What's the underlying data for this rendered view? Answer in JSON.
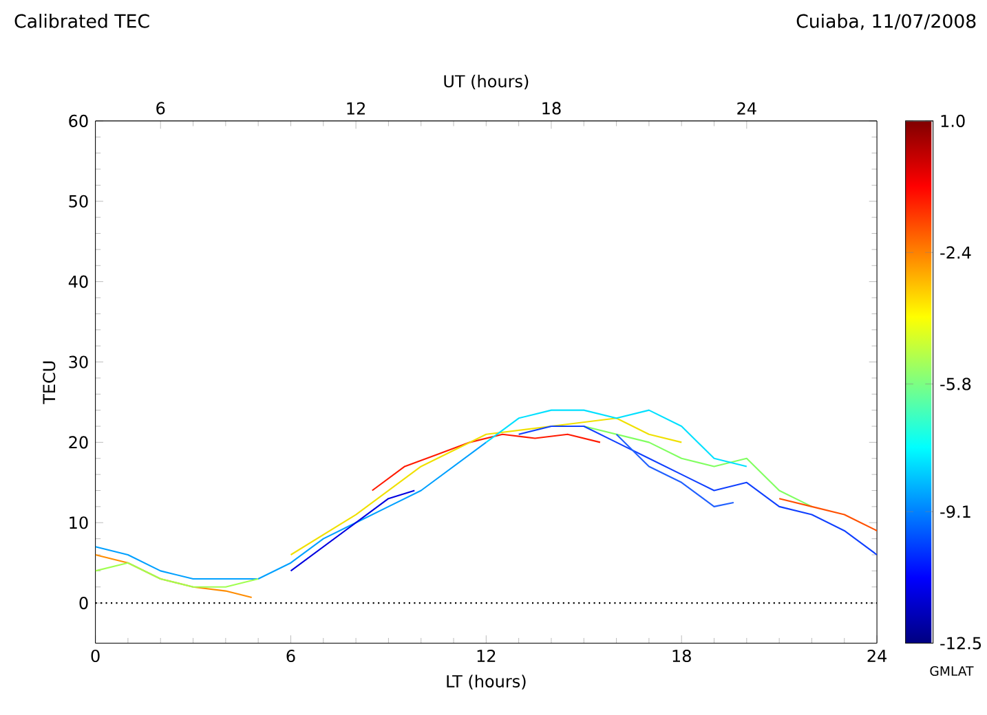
{
  "chart_data": {
    "type": "line",
    "title": "Calibrated TEC",
    "subtitle": "Cuiaba, 11/07/2008",
    "xlabel": "LT (hours)",
    "x2label": "UT (hours)",
    "ylabel": "TECU",
    "clabel": "GMLAT",
    "xlim": [
      0,
      24
    ],
    "xticks": [
      0,
      6,
      12,
      18,
      24
    ],
    "x2lim": [
      4,
      28
    ],
    "x2ticks": [
      6,
      12,
      18,
      24
    ],
    "ylim": [
      -5,
      60
    ],
    "yticks": [
      0,
      10,
      20,
      30,
      40,
      50,
      60
    ],
    "clim": [
      -12.5,
      1.0
    ],
    "cticks": [
      {
        "value": 1.0,
        "label": "1.0"
      },
      {
        "value": -2.4,
        "label": "-2.4"
      },
      {
        "value": -5.8,
        "label": "-5.8"
      },
      {
        "value": -9.1,
        "label": "-9.1"
      },
      {
        "value": -12.5,
        "label": "-12.5"
      }
    ],
    "ref_lines": [
      {
        "axis": "y",
        "value": 0,
        "line_style": "dotted",
        "color": "#000000"
      }
    ],
    "series": [
      {
        "color": "#ff1a00",
        "x": [
          8.5,
          9.5,
          10.5,
          11.5,
          12.5,
          13.5,
          14.5,
          15.5
        ],
        "values": [
          14,
          17,
          18.5,
          20,
          21,
          20.5,
          21,
          20
        ]
      },
      {
        "color": "#ff8c00",
        "x": [
          0,
          1,
          2,
          3,
          4,
          4.8
        ],
        "values": [
          6,
          5,
          3,
          2,
          1.5,
          0.7
        ]
      },
      {
        "color": "#f0e000",
        "x": [
          6,
          8,
          10,
          12,
          14,
          16,
          17,
          18
        ],
        "values": [
          6,
          11,
          17,
          21,
          22,
          23,
          21,
          20
        ]
      },
      {
        "color": "#80ff60",
        "x": [
          15,
          16,
          17,
          18,
          19,
          20,
          21,
          22
        ],
        "values": [
          22,
          21,
          20,
          18,
          17,
          18,
          14,
          12
        ]
      },
      {
        "color": "#00e0ff",
        "x": [
          12,
          13,
          14,
          15,
          16,
          17,
          18,
          19,
          20
        ],
        "values": [
          20,
          23,
          24,
          24,
          23,
          24,
          22,
          18,
          17
        ]
      },
      {
        "color": "#00a0ff",
        "x": [
          0,
          1,
          2,
          3,
          4,
          5,
          6,
          7,
          8,
          9,
          10,
          11,
          12
        ],
        "values": [
          7,
          6,
          4,
          3,
          3,
          3,
          5,
          8,
          10,
          12,
          14,
          17,
          20
        ]
      },
      {
        "color": "#1040ff",
        "x": [
          13,
          14,
          15,
          16,
          17,
          18,
          19,
          20,
          21,
          22,
          23,
          24
        ],
        "values": [
          21,
          22,
          22,
          20,
          18,
          16,
          14,
          15,
          12,
          11,
          9,
          6
        ]
      },
      {
        "color": "#0000e0",
        "x": [
          6,
          7,
          8,
          9,
          9.8
        ],
        "values": [
          4,
          7,
          10,
          13,
          14
        ]
      },
      {
        "color": "#2060ff",
        "x": [
          16,
          17,
          18,
          19,
          19.6
        ],
        "values": [
          21,
          17,
          15,
          12,
          12.5
        ]
      },
      {
        "color": "#ff5000",
        "x": [
          21,
          22,
          23,
          24
        ],
        "values": [
          13,
          12,
          11,
          9
        ]
      },
      {
        "color": "#a0ff50",
        "x": [
          0,
          1,
          2,
          3,
          4,
          5
        ],
        "values": [
          4,
          5,
          3,
          2,
          2,
          3
        ]
      }
    ]
  }
}
